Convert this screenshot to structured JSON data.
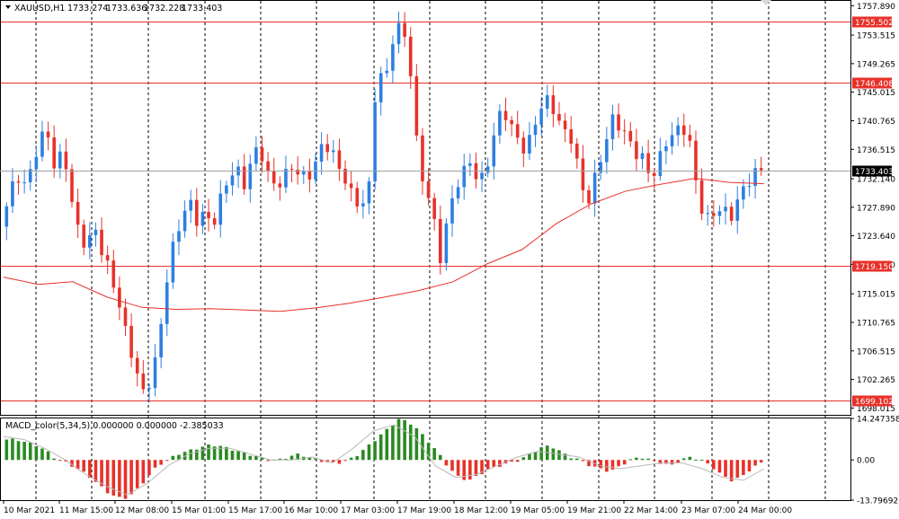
{
  "chart_data": {
    "type": "candlestick",
    "main_panel": {
      "symbol_label": "XAUUSD,H1",
      "ohlc_readout": [
        "1733.274",
        "1733.636",
        "1732.228",
        "1733.403"
      ],
      "ylim": [
        1697.0,
        1758.6
      ],
      "y_ticks": [
        "1757.890",
        "1753.515",
        "1749.265",
        "1745.015",
        "1740.765",
        "1736.515",
        "1732.140",
        "1727.890",
        "1723.640",
        "1719.390",
        "1715.015",
        "1710.765",
        "1706.515",
        "1702.265",
        "1698.015"
      ],
      "y_tick_values": [
        1757.89,
        1753.515,
        1749.265,
        1745.015,
        1740.765,
        1736.515,
        1732.14,
        1727.89,
        1723.64,
        1719.39,
        1715.015,
        1710.765,
        1706.515,
        1702.265,
        1698.015
      ],
      "horizontal_levels": [
        {
          "value": 1755.502,
          "label": "1755.502",
          "color": "#e8312a"
        },
        {
          "value": 1746.408,
          "label": "1746.408",
          "color": "#e8312a"
        },
        {
          "value": 1719.15,
          "label": "1719.150",
          "color": "#e8312a"
        },
        {
          "value": 1699.102,
          "label": "1699.102",
          "color": "#e8312a"
        }
      ],
      "current_price": {
        "value": 1733.403,
        "label": "1733.403"
      },
      "moving_average_color": "#e8312a",
      "bull_color": "#2e7fe0",
      "bear_color": "#e8312a",
      "close_path": [
        1725,
        1729,
        1733,
        1731,
        1734,
        1738,
        1739,
        1733,
        1737,
        1729,
        1724,
        1722,
        1725,
        1721,
        1718,
        1714,
        1709,
        1705,
        1700,
        1702,
        1706,
        1716,
        1722,
        1726,
        1729,
        1726,
        1727,
        1725,
        1729,
        1732,
        1734,
        1731,
        1735,
        1737,
        1733,
        1731,
        1732,
        1734,
        1733,
        1732,
        1734,
        1737,
        1737,
        1734,
        1732,
        1729,
        1728,
        1731,
        1749,
        1746,
        1753,
        1755,
        1752,
        1738,
        1731,
        1728,
        1720,
        1726,
        1731,
        1733,
        1735,
        1731,
        1734,
        1739,
        1743,
        1740,
        1738,
        1736,
        1740,
        1743,
        1744,
        1741,
        1739,
        1738,
        1731,
        1729,
        1733,
        1737,
        1741,
        1740,
        1738,
        1736,
        1735,
        1732,
        1735,
        1738,
        1739,
        1740,
        1737,
        1729,
        1726,
        1727,
        1728,
        1726,
        1729,
        1731,
        1733,
        1733.4
      ],
      "ma_path": [
        1717.5,
        1716.4,
        1716.8,
        1714.5,
        1713.0,
        1712.7,
        1712.8,
        1712.6,
        1712.4,
        1712.9,
        1713.6,
        1714.5,
        1715.5,
        1716.8,
        1719.5,
        1721.6,
        1725.5,
        1728.4,
        1730.3,
        1731.3,
        1732.2,
        1731.6,
        1731.4
      ]
    },
    "sub_panel": {
      "label": "MACD_color(5,34,5) 0.000000 0.000000 -2.385033",
      "ylim": [
        -13.796926,
        14.247358
      ],
      "y_ticks": [
        "14.247358",
        "0.00",
        "-13.796926"
      ],
      "y_tick_values": [
        14.247358,
        0.0,
        -13.796926
      ],
      "pos_color": "#2a8a22",
      "neg_color": "#e8312a",
      "signal_color": "#b8b8b8",
      "macd_path": [
        7,
        7,
        6,
        5,
        3,
        0,
        -1,
        -3,
        -5,
        -8,
        -11,
        -13,
        -13,
        -10,
        -6,
        -2,
        0,
        2,
        3,
        4,
        5,
        5,
        4,
        3,
        2,
        1,
        0,
        0,
        1,
        2,
        1,
        0,
        -1,
        -1,
        0,
        2,
        5,
        8,
        11,
        14,
        13,
        10,
        6,
        2,
        -3,
        -6,
        -7,
        -5,
        -3,
        -2,
        -1,
        0,
        2,
        4,
        5,
        3,
        1,
        0,
        -2,
        -3,
        -4,
        -2,
        0,
        1,
        0,
        -1,
        -2,
        0,
        1,
        0,
        -2,
        -5,
        -7,
        -6,
        -3,
        -1
      ],
      "signal_path": [
        8,
        7,
        4,
        0,
        -5,
        -9,
        -12,
        -8,
        -2,
        2,
        4,
        4,
        2,
        0,
        0,
        1,
        -1,
        4,
        10,
        12,
        8,
        -2,
        -6,
        -5,
        -2,
        1,
        3,
        2,
        1,
        -2,
        -3,
        -2,
        -1,
        -1,
        -3,
        -6,
        -7,
        -3
      ]
    },
    "x_tick_labels": [
      "10 Mar 2021",
      "11 Mar 15:00",
      "12 Mar 08:00",
      "15 Mar 01:00",
      "15 Mar 17:00",
      "16 Mar 10:00",
      "17 Mar 03:00",
      "17 Mar 19:00",
      "18 Mar 12:00",
      "19 Mar 05:00",
      "19 Mar 21:00",
      "22 Mar 14:00",
      "23 Mar 07:00",
      "24 Mar 00:00"
    ]
  }
}
